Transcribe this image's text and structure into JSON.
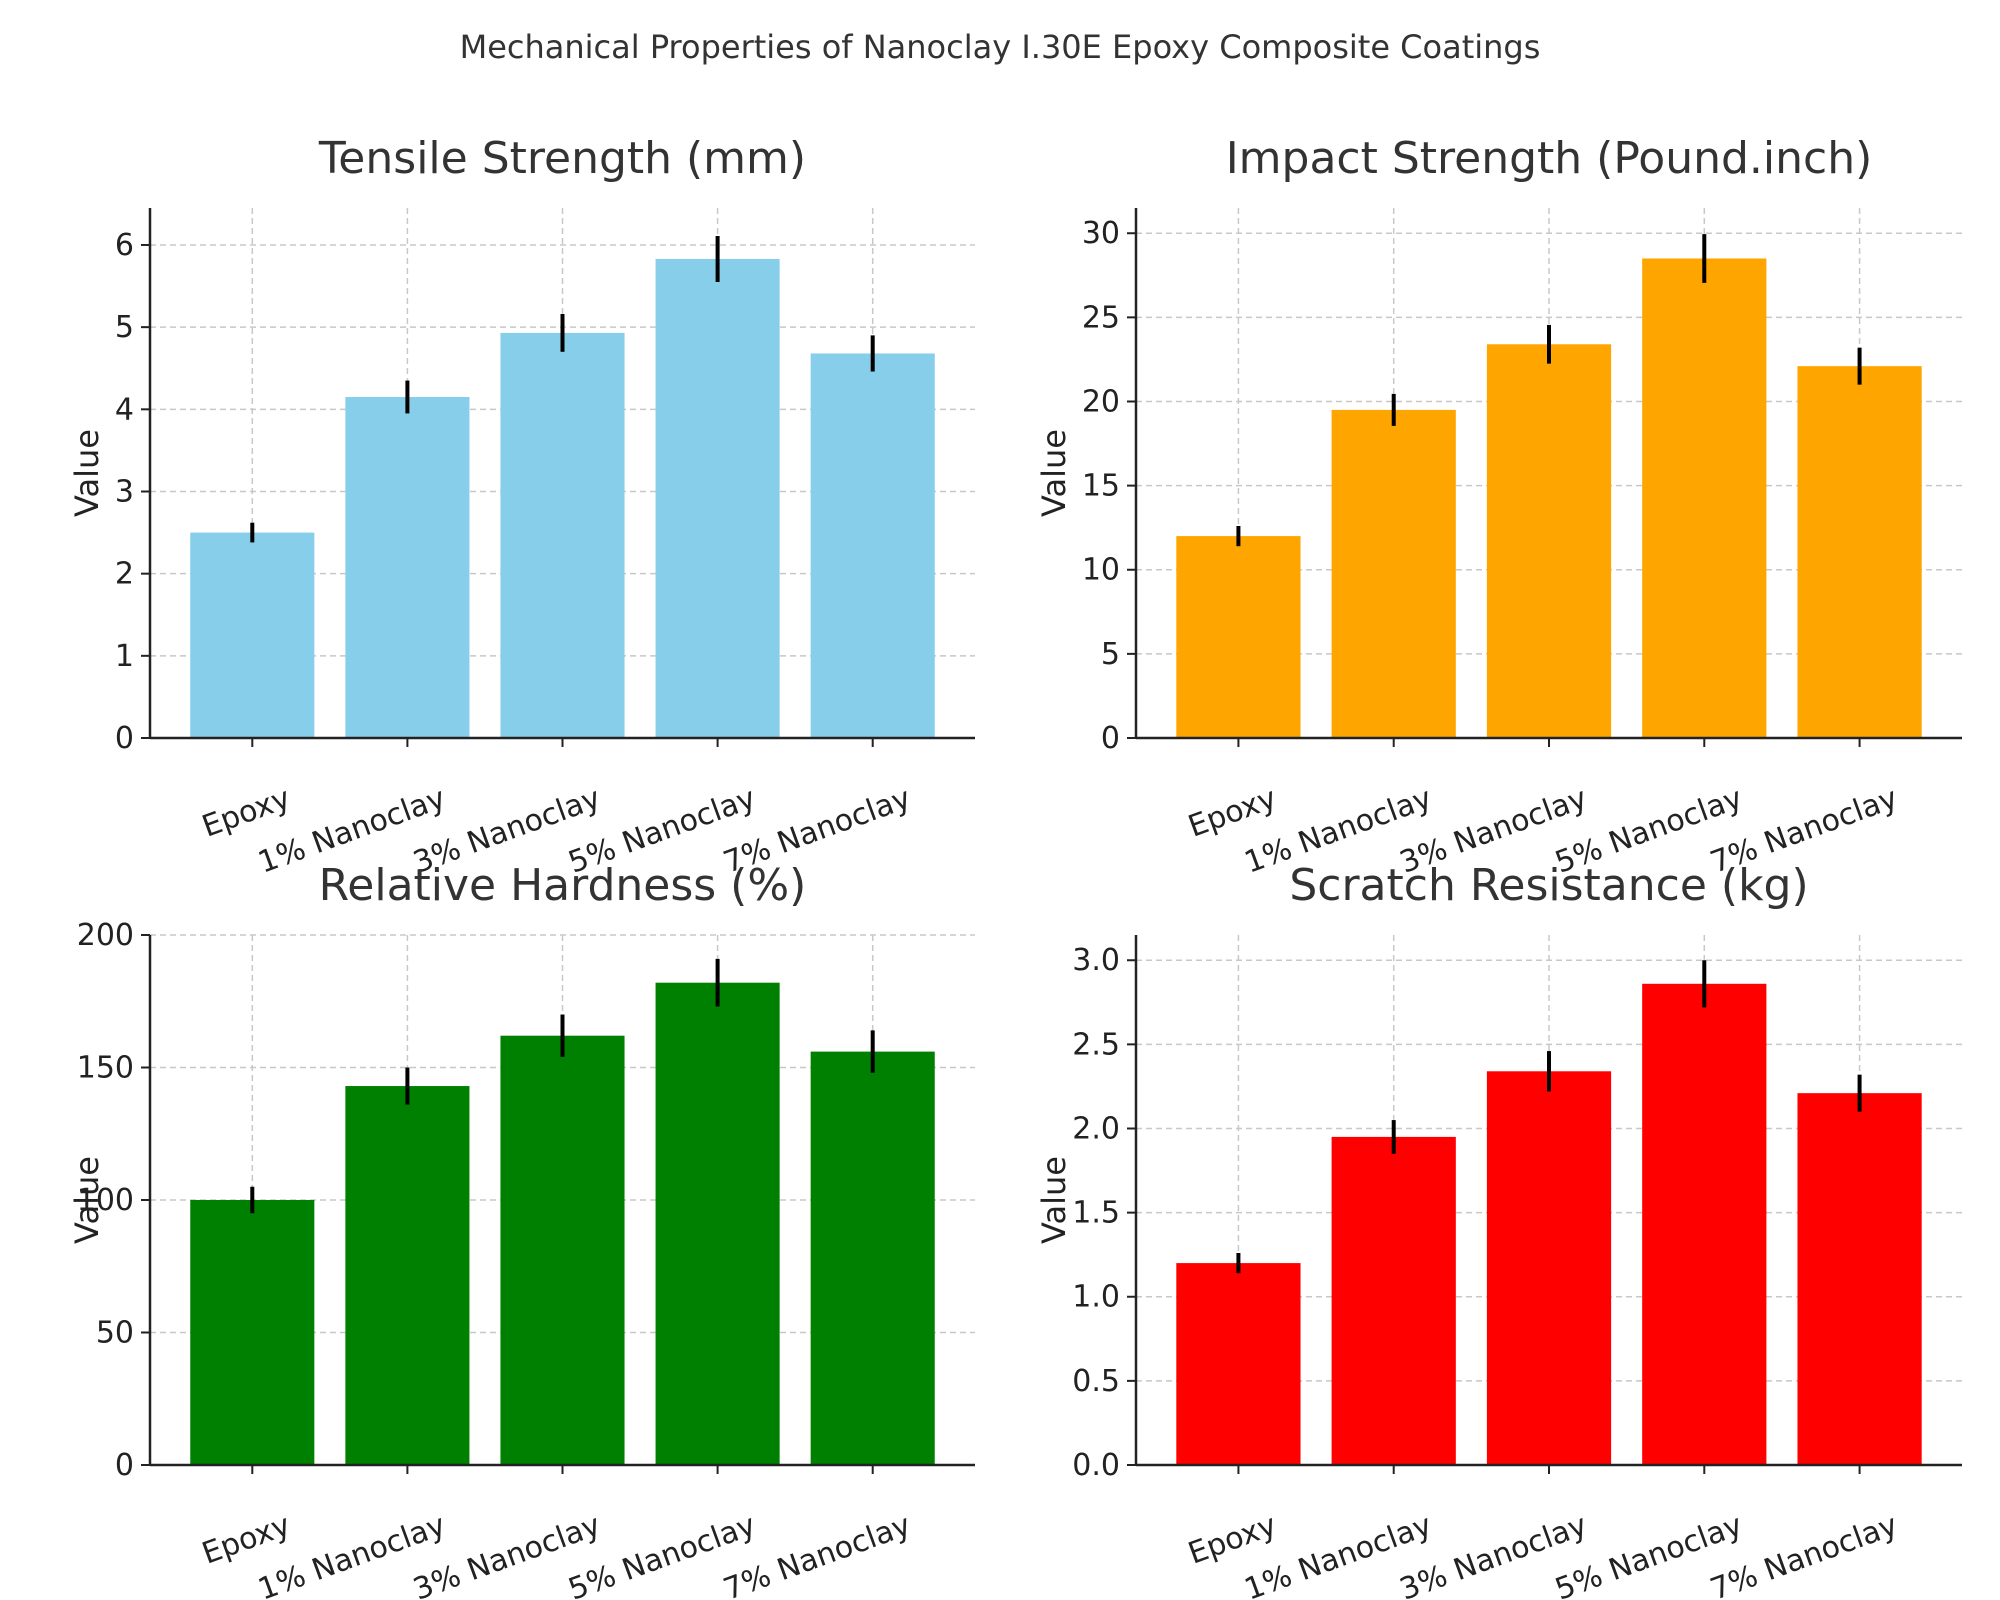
{
  "figure_title": "Mechanical Properties of Nanoclay I.30E Epoxy Composite Coatings",
  "chart_data": [
    {
      "type": "bar",
      "title": "Tensile Strength (mm)",
      "ylabel": "Value",
      "xlabel": "",
      "categories": [
        "Epoxy",
        "1% Nanoclay",
        "3% Nanoclay",
        "5% Nanoclay",
        "7% Nanoclay"
      ],
      "values": [
        2.5,
        4.15,
        4.93,
        5.83,
        4.68
      ],
      "errors": [
        0.12,
        0.2,
        0.23,
        0.28,
        0.22
      ],
      "ylim": [
        0,
        6.45
      ],
      "yticks": [
        0,
        1,
        2,
        3,
        4,
        5,
        6
      ],
      "ytick_labels": [
        "0",
        "1",
        "2",
        "3",
        "4",
        "5",
        "6"
      ],
      "color": "#87CEEB",
      "grid": true
    },
    {
      "type": "bar",
      "title": "Impact Strength (Pound.inch)",
      "ylabel": "Value",
      "xlabel": "",
      "categories": [
        "Epoxy",
        "1% Nanoclay",
        "3% Nanoclay",
        "5% Nanoclay",
        "7% Nanoclay"
      ],
      "values": [
        12,
        19.5,
        23.4,
        28.5,
        22.1
      ],
      "errors": [
        0.6,
        0.95,
        1.15,
        1.45,
        1.1
      ],
      "ylim": [
        0,
        31.5
      ],
      "yticks": [
        0,
        5,
        10,
        15,
        20,
        25,
        30
      ],
      "ytick_labels": [
        "0",
        "5",
        "10",
        "15",
        "20",
        "25",
        "30"
      ],
      "color": "#FFA500",
      "grid": true
    },
    {
      "type": "bar",
      "title": "Relative Hardness (%)",
      "ylabel": "Value",
      "xlabel": "",
      "categories": [
        "Epoxy",
        "1% Nanoclay",
        "3% Nanoclay",
        "5% Nanoclay",
        "7% Nanoclay"
      ],
      "values": [
        100,
        143,
        162,
        182,
        156
      ],
      "errors": [
        5,
        7,
        8,
        9,
        8
      ],
      "ylim": [
        0,
        200
      ],
      "yticks": [
        0,
        50,
        100,
        150,
        200
      ],
      "ytick_labels": [
        "0",
        "50",
        "100",
        "150",
        "200"
      ],
      "color": "#008000",
      "grid": true
    },
    {
      "type": "bar",
      "title": "Scratch Resistance (kg)",
      "ylabel": "Value",
      "xlabel": "",
      "categories": [
        "Epoxy",
        "1% Nanoclay",
        "3% Nanoclay",
        "5% Nanoclay",
        "7% Nanoclay"
      ],
      "values": [
        1.2,
        1.95,
        2.34,
        2.86,
        2.21
      ],
      "errors": [
        0.06,
        0.1,
        0.12,
        0.14,
        0.11
      ],
      "ylim": [
        0,
        3.15
      ],
      "yticks": [
        0,
        0.5,
        1,
        1.5,
        2,
        2.5,
        3
      ],
      "ytick_labels": [
        "0.0",
        "0.5",
        "1.0",
        "1.5",
        "2.0",
        "2.5",
        "3.0"
      ],
      "color": "#FF0000",
      "grid": true
    }
  ]
}
